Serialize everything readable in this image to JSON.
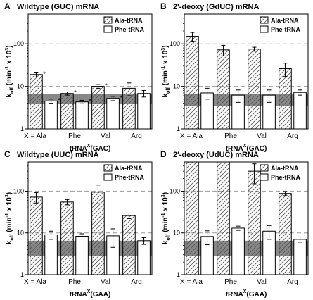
{
  "colors": {
    "band": "#888888",
    "dash": "#999999",
    "bar_stroke": "#000000",
    "hatch": "#555555"
  },
  "legend_labels": [
    "Ala-tRNA",
    "Phe-tRNA"
  ],
  "y_label_main": "k",
  "y_label_sub": "off",
  "y_label_rest": " (min",
  "y_label_exp": "-1",
  "y_label_tail": " x 10",
  "y_label_exp2": "3",
  "y_label_close": ")",
  "x_prefix": "X =",
  "chart_data": [
    {
      "letter": "A",
      "title": "Wildtype (GUC) mRNA",
      "type": "bar",
      "y_scale": "log",
      "ylim": [
        1,
        500
      ],
      "xlabel_main": "tRNA",
      "xlabel_sup": "X",
      "xlabel_tail": "(GAC)",
      "categories": [
        "Ala",
        "Phe",
        "Val",
        "Arg"
      ],
      "series": [
        {
          "name": "Ala-tRNA",
          "values": [
            19,
            6.8,
            10,
            9
          ]
        },
        {
          "name": "Phe-tRNA",
          "values": [
            4.5,
            4.3,
            5.2,
            6.8
          ]
        }
      ],
      "errors": [
        [
          2.5,
          0.6,
          1,
          3
        ],
        [
          0.5,
          0.4,
          0.6,
          1.2
        ]
      ],
      "asterisks": [
        [
          true,
          true,
          true,
          false
        ],
        [
          true,
          true,
          true,
          false
        ]
      ],
      "band": {
        "low": 3.8,
        "high": 6.5
      }
    },
    {
      "letter": "B",
      "title": "2′-deoxy (GdUC) mRNA",
      "type": "bar",
      "y_scale": "log",
      "ylim": [
        1,
        500
      ],
      "xlabel_main": "tRNA",
      "xlabel_sup": "X",
      "xlabel_tail": "(GAC)",
      "categories": [
        "Ala",
        "Phe",
        "Val",
        "Arg"
      ],
      "series": [
        {
          "name": "Ala-tRNA",
          "values": [
            150,
            72,
            75,
            26
          ]
        },
        {
          "name": "Phe-tRNA",
          "values": [
            7,
            6.2,
            6.2,
            7.2
          ]
        }
      ],
      "errors": [
        [
          35,
          20,
          8,
          9
        ],
        [
          2,
          2,
          2,
          1
        ]
      ],
      "asterisks": [
        [
          false,
          false,
          false,
          false
        ],
        [
          false,
          false,
          false,
          false
        ]
      ],
      "band": {
        "low": 3.5,
        "high": 6.5
      }
    },
    {
      "letter": "C",
      "title": "Wildtype (UUC) mRNA",
      "type": "bar",
      "y_scale": "log",
      "ylim": [
        1,
        500
      ],
      "xlabel_main": "tRNA",
      "xlabel_sup": "X",
      "xlabel_tail": "(GAA)",
      "categories": [
        "Ala",
        "Phe",
        "Val",
        "Arg"
      ],
      "series": [
        {
          "name": "Ala-tRNA",
          "values": [
            72,
            55,
            95,
            26
          ]
        },
        {
          "name": "Phe-tRNA",
          "values": [
            9,
            8.3,
            8.5,
            6.5
          ]
        }
      ],
      "errors": [
        [
          20,
          8,
          45,
          4
        ],
        [
          2,
          1.2,
          4,
          1.2
        ]
      ],
      "asterisks": [
        [
          false,
          false,
          false,
          false
        ],
        [
          false,
          false,
          false,
          false
        ]
      ],
      "band": {
        "low": 2.8,
        "high": 6.5
      }
    },
    {
      "letter": "D",
      "title": "2′-deoxy (UdUC) mRNA",
      "type": "bar",
      "y_scale": "log",
      "ylim": [
        1,
        500
      ],
      "xlabel_main": "tRNA",
      "xlabel_sup": "X",
      "xlabel_tail": "(GAA)",
      "categories": [
        "Ala",
        "Phe",
        "Val",
        "Arg"
      ],
      "series": [
        {
          "name": "Ala-tRNA",
          "values": [
            500,
            500,
            300,
            88
          ]
        },
        {
          "name": "Phe-tRNA",
          "values": [
            8.2,
            13,
            11,
            7
          ]
        }
      ],
      "errors": [
        [
          0,
          0,
          150,
          10
        ],
        [
          3,
          1.5,
          4,
          1
        ]
      ],
      "asterisks": [
        [
          false,
          false,
          false,
          false
        ],
        [
          false,
          false,
          false,
          false
        ]
      ],
      "band": {
        "low": 2.8,
        "high": 6.5
      }
    }
  ]
}
